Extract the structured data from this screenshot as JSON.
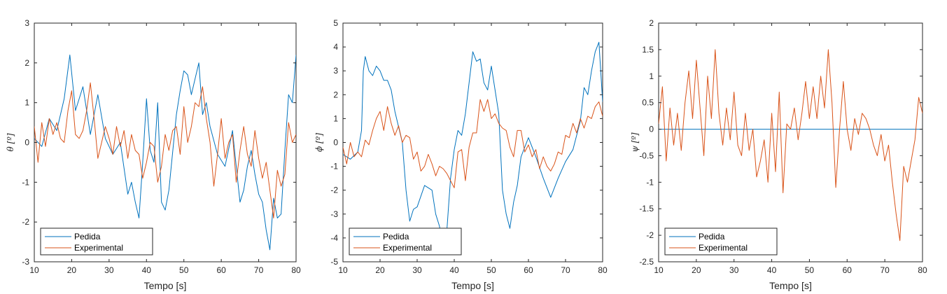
{
  "colors": {
    "series_1": "#0072BD",
    "series_2": "#D95319",
    "axis": "#262626"
  },
  "chart_data": [
    {
      "type": "line",
      "xlabel": "Tempo [s]",
      "ylabel": "θ [º]",
      "xlim": [
        10,
        80
      ],
      "ylim": [
        -3,
        3
      ],
      "xticks": [
        10,
        20,
        30,
        40,
        50,
        60,
        70,
        80
      ],
      "yticks": [
        -3,
        -2,
        -1,
        0,
        1,
        2,
        3
      ],
      "grid": false,
      "legend": "bottom-left",
      "series": [
        {
          "name": "Pedida",
          "color": "#0072BD",
          "x": [
            10,
            12,
            14,
            16,
            18,
            19.5,
            21,
            23,
            25,
            27,
            29,
            31,
            33,
            35,
            36,
            37,
            38,
            39,
            40,
            41,
            42,
            43,
            44,
            45,
            46,
            48,
            49,
            50,
            51,
            52,
            53,
            54,
            55,
            56,
            57,
            59,
            61,
            63,
            64,
            65,
            66,
            67,
            68,
            69,
            70,
            71,
            72,
            73,
            74,
            75,
            76,
            77,
            78,
            79,
            80
          ],
          "y": [
            0.1,
            -0.1,
            0.6,
            0.3,
            1.1,
            2.2,
            0.8,
            1.4,
            0.2,
            1.2,
            0.1,
            -0.3,
            0.0,
            -1.3,
            -1.0,
            -1.5,
            -1.9,
            -0.5,
            1.1,
            -0.2,
            -0.5,
            1.0,
            -1.5,
            -1.7,
            -1.2,
            0.7,
            1.3,
            1.8,
            1.7,
            1.2,
            1.6,
            2.0,
            0.7,
            1.0,
            0.4,
            -0.3,
            -0.6,
            0.3,
            -0.6,
            -1.5,
            -1.2,
            -0.6,
            -0.2,
            -0.8,
            -1.3,
            -1.5,
            -2.2,
            -2.7,
            -1.4,
            -1.9,
            -1.8,
            -0.2,
            1.2,
            1.0,
            2.2
          ]
        },
        {
          "name": "Experimental",
          "color": "#D95319",
          "x": [
            10,
            11,
            12,
            13,
            14,
            15,
            16,
            17,
            18,
            19,
            20,
            21,
            22,
            23,
            24,
            25,
            26,
            27,
            28,
            29,
            30,
            31,
            32,
            33,
            34,
            35,
            36,
            37,
            38,
            39,
            40,
            41,
            42,
            43,
            44,
            45,
            46,
            47,
            48,
            49,
            50,
            51,
            52,
            53,
            54,
            55,
            56,
            57,
            58,
            59,
            60,
            61,
            62,
            63,
            64,
            65,
            66,
            67,
            68,
            69,
            70,
            71,
            72,
            73,
            74,
            75,
            76,
            77,
            78,
            79,
            80
          ],
          "y": [
            0.4,
            -0.5,
            0.5,
            -0.1,
            0.6,
            0.2,
            0.5,
            0.1,
            0.0,
            0.8,
            1.3,
            0.2,
            0.1,
            0.3,
            0.8,
            1.5,
            0.6,
            -0.4,
            0.0,
            0.4,
            0.1,
            -0.3,
            0.4,
            -0.1,
            0.3,
            -0.4,
            0.2,
            -0.2,
            -0.3,
            -0.9,
            -0.5,
            0.0,
            -0.1,
            -1.0,
            -0.6,
            0.2,
            -0.2,
            0.3,
            0.4,
            -0.3,
            0.9,
            0.0,
            0.4,
            1.0,
            0.9,
            1.4,
            0.6,
            0.0,
            -1.1,
            -0.3,
            0.6,
            -0.4,
            0.0,
            0.2,
            -1.0,
            -0.2,
            0.4,
            -0.3,
            -0.6,
            0.3,
            -0.4,
            -0.9,
            -0.5,
            -1.2,
            -1.9,
            -0.7,
            -1.1,
            -0.8,
            0.5,
            0.0,
            0.2
          ]
        }
      ]
    },
    {
      "type": "line",
      "xlabel": "Tempo [s]",
      "ylabel": "ϕ [º]",
      "xlim": [
        10,
        80
      ],
      "ylim": [
        -5,
        5
      ],
      "xticks": [
        10,
        20,
        30,
        40,
        50,
        60,
        70,
        80
      ],
      "yticks": [
        -5,
        -4,
        -3,
        -2,
        -1,
        0,
        1,
        2,
        3,
        4,
        5
      ],
      "grid": false,
      "legend": "bottom-left",
      "series": [
        {
          "name": "Pedida",
          "color": "#0072BD",
          "x": [
            10,
            12,
            14,
            15,
            15.5,
            16,
            17,
            18,
            19,
            20,
            21,
            22,
            23,
            24,
            26,
            27,
            28,
            29,
            30,
            32,
            34,
            35,
            36,
            37,
            38,
            39,
            40,
            41,
            42,
            43,
            44,
            45,
            46,
            47,
            48,
            49,
            50,
            51,
            52,
            53,
            54,
            55,
            56,
            57,
            58,
            60,
            62,
            64,
            66,
            68,
            70,
            72,
            73,
            74,
            75,
            76,
            77,
            78,
            79,
            80
          ],
          "y": [
            -0.5,
            -0.7,
            -0.4,
            0.5,
            3.0,
            3.6,
            3.0,
            2.8,
            3.2,
            3.0,
            2.6,
            2.6,
            2.2,
            1.3,
            0.0,
            -2.0,
            -3.3,
            -2.8,
            -2.7,
            -1.8,
            -2.0,
            -3.0,
            -3.5,
            -4.3,
            -3.7,
            -1.5,
            -0.3,
            0.5,
            0.3,
            1.2,
            2.5,
            3.8,
            3.4,
            3.5,
            2.5,
            2.2,
            3.2,
            2.2,
            1.2,
            -2.0,
            -3.0,
            -3.6,
            -2.5,
            -1.8,
            -0.6,
            0.2,
            -0.6,
            -1.5,
            -2.3,
            -1.5,
            -0.8,
            -0.3,
            0.3,
            0.9,
            2.3,
            2.0,
            3.0,
            3.8,
            4.2,
            1.7
          ]
        },
        {
          "name": "Experimental",
          "color": "#D95319",
          "x": [
            10,
            11,
            12,
            13,
            14,
            15,
            16,
            17,
            18,
            19,
            20,
            21,
            22,
            23,
            24,
            25,
            26,
            27,
            28,
            29,
            30,
            31,
            32,
            33,
            34,
            35,
            36,
            37,
            38,
            39,
            40,
            41,
            42,
            43,
            44,
            45,
            46,
            47,
            48,
            49,
            50,
            51,
            52,
            53,
            54,
            55,
            56,
            57,
            58,
            59,
            60,
            61,
            62,
            63,
            64,
            65,
            66,
            67,
            68,
            69,
            70,
            71,
            72,
            73,
            74,
            75,
            76,
            77,
            78,
            79,
            80
          ],
          "y": [
            -0.2,
            -0.9,
            0.0,
            -0.6,
            -0.4,
            -0.6,
            0.1,
            -0.1,
            0.5,
            1.0,
            1.3,
            0.5,
            1.5,
            0.8,
            0.3,
            0.7,
            0.0,
            0.3,
            0.2,
            -0.7,
            -0.4,
            -1.2,
            -1.0,
            -0.5,
            -0.9,
            -1.4,
            -1.0,
            -1.1,
            -1.3,
            -1.6,
            -1.9,
            -0.4,
            -0.3,
            -1.6,
            -0.2,
            0.4,
            0.4,
            1.8,
            1.3,
            1.8,
            1.0,
            1.2,
            0.8,
            0.6,
            0.5,
            -0.2,
            -0.6,
            0.5,
            0.5,
            -0.4,
            -0.1,
            -0.6,
            -0.3,
            -1.1,
            -0.6,
            -1.0,
            -1.2,
            -0.9,
            -0.4,
            -0.5,
            0.3,
            0.2,
            0.8,
            0.4,
            1.0,
            0.6,
            1.1,
            1.0,
            1.5,
            1.7,
            1.1
          ]
        }
      ]
    },
    {
      "type": "line",
      "xlabel": "Tempo [s]",
      "ylabel": "ψ [º]",
      "xlim": [
        10,
        80
      ],
      "ylim": [
        -2.5,
        2
      ],
      "xticks": [
        10,
        20,
        30,
        40,
        50,
        60,
        70,
        80
      ],
      "yticks": [
        -2.5,
        -2,
        -1.5,
        -1,
        -0.5,
        0,
        0.5,
        1,
        1.5,
        2
      ],
      "ytick_labels": [
        "-2.5",
        "-2",
        "-1.5",
        "-1",
        "-0.5",
        "0",
        "0.5",
        "1",
        "1.5",
        "2"
      ],
      "grid": false,
      "legend": "bottom-left",
      "series": [
        {
          "name": "Pedida",
          "color": "#0072BD",
          "x": [
            10,
            80
          ],
          "y": [
            0,
            0
          ]
        },
        {
          "name": "Experimental",
          "color": "#D95319",
          "x": [
            10,
            11,
            12,
            13,
            14,
            15,
            16,
            17,
            18,
            19,
            20,
            21,
            22,
            23,
            24,
            25,
            26,
            27,
            28,
            29,
            30,
            31,
            32,
            33,
            34,
            35,
            36,
            37,
            38,
            39,
            40,
            41,
            42,
            43,
            44,
            45,
            46,
            47,
            48,
            49,
            50,
            51,
            52,
            53,
            54,
            55,
            56,
            57,
            58,
            59,
            60,
            61,
            62,
            63,
            64,
            65,
            66,
            67,
            68,
            69,
            70,
            71,
            72,
            73,
            74,
            75,
            76,
            77,
            78,
            79,
            80
          ],
          "y": [
            0.1,
            0.8,
            -0.6,
            0.4,
            -0.3,
            0.3,
            -0.4,
            0.5,
            1.1,
            0.2,
            1.3,
            0.4,
            -0.5,
            1.0,
            0.2,
            1.5,
            0.3,
            -0.3,
            0.4,
            -0.2,
            0.7,
            -0.3,
            -0.5,
            0.3,
            -0.4,
            0.0,
            -0.9,
            -0.6,
            -0.2,
            -1.0,
            0.3,
            -0.8,
            0.7,
            -1.2,
            0.1,
            0.0,
            0.4,
            -0.2,
            0.3,
            0.9,
            0.2,
            0.8,
            0.2,
            1.0,
            0.4,
            1.5,
            0.5,
            -1.1,
            0.0,
            0.9,
            0.0,
            -0.4,
            0.2,
            -0.1,
            0.3,
            0.2,
            0.0,
            -0.3,
            -0.5,
            -0.1,
            -0.6,
            -0.3,
            -1.0,
            -1.6,
            -2.1,
            -0.7,
            -1.0,
            -0.6,
            -0.2,
            0.6,
            0.3
          ]
        }
      ]
    }
  ]
}
